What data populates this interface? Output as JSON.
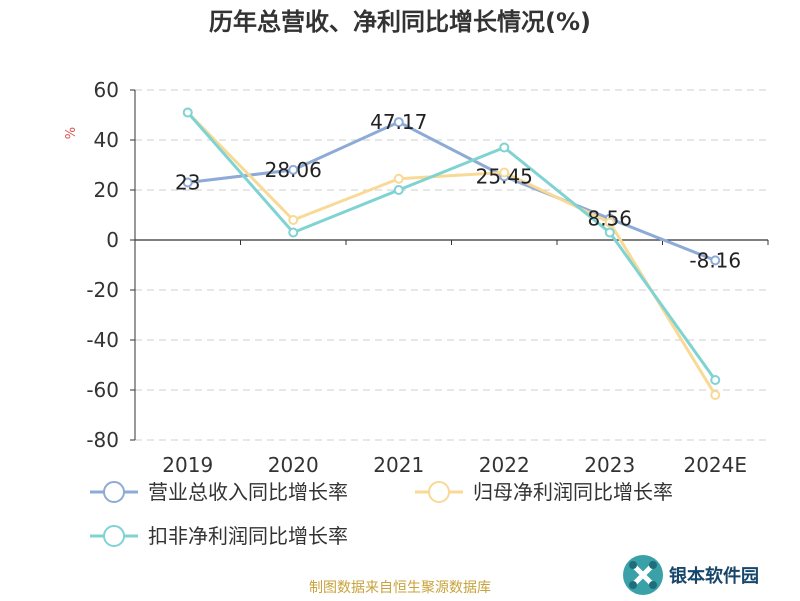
{
  "chart_data": {
    "type": "line",
    "title": "历年总营收、净利同比增长情况(%)",
    "ylabel": "%",
    "categories": [
      "2019",
      "2020",
      "2021",
      "2022",
      "2023",
      "2024E"
    ],
    "ylim": [
      -80,
      60
    ],
    "yticks": [
      60,
      40,
      20,
      0,
      -20,
      -40,
      -60,
      -80
    ],
    "grid": "horizontal-dashed",
    "legend_position": "bottom-left",
    "series": [
      {
        "name": "营业总收入同比增长率",
        "color": "#8eaad6",
        "values": [
          23,
          28.06,
          47.17,
          25.45,
          8.56,
          -8.16
        ],
        "labels": [
          "23",
          "28.06",
          "47.17",
          "25.45",
          "8.56",
          "-8.16"
        ]
      },
      {
        "name": "归母净利润同比增长率",
        "color": "#f9d996",
        "values": [
          51,
          8,
          24.5,
          27,
          7,
          -62
        ]
      },
      {
        "name": "扣非净利润同比增长率",
        "color": "#7fd3d2",
        "values": [
          51,
          3,
          20,
          37,
          3,
          -56
        ]
      }
    ]
  },
  "footer": {
    "source": "制图数据来自恒生聚源数据库"
  },
  "logo": {
    "text": "银本软件园"
  }
}
